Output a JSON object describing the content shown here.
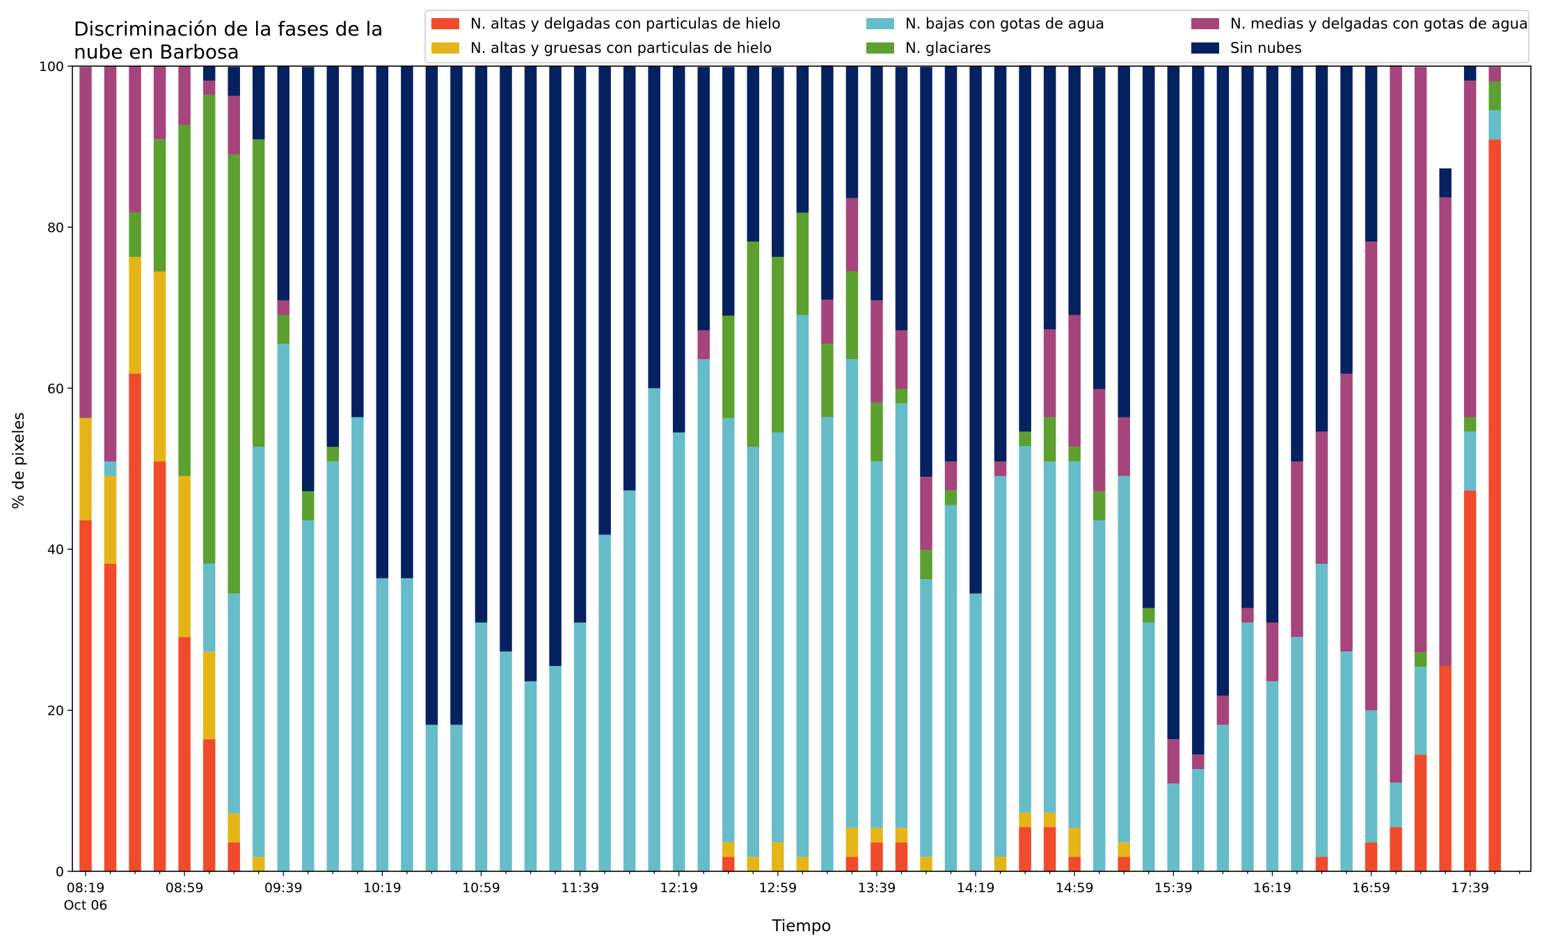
{
  "chart_data": {
    "type": "bar",
    "stacked": true,
    "title_lines": [
      "Discriminación de la fases de la",
      "nube en Barbosa"
    ],
    "xlabel": "Tiempo",
    "ylabel": "% de pixeles",
    "ylim": [
      0,
      100
    ],
    "yticks": [
      0,
      20,
      40,
      60,
      80,
      100
    ],
    "grid": false,
    "legend_position": "top-right",
    "categories": [
      "08:19",
      "08:29",
      "08:39",
      "08:49",
      "08:59",
      "09:09",
      "09:19",
      "09:29",
      "09:39",
      "09:49",
      "09:59",
      "10:09",
      "10:19",
      "10:29",
      "10:39",
      "10:49",
      "10:59",
      "11:09",
      "11:19",
      "11:29",
      "11:39",
      "11:49",
      "11:59",
      "12:09",
      "12:19",
      "12:29",
      "12:39",
      "12:49",
      "12:59",
      "13:09",
      "13:19",
      "13:29",
      "13:39",
      "13:49",
      "13:59",
      "14:09",
      "14:19",
      "14:29",
      "14:39",
      "14:49",
      "14:59",
      "15:09",
      "15:19",
      "15:29",
      "15:39",
      "15:49",
      "15:59",
      "16:09",
      "16:19",
      "16:29",
      "16:39",
      "16:49",
      "16:59",
      "17:09",
      "17:19",
      "17:29",
      "17:39",
      "17:49"
    ],
    "xtick_labels": [
      {
        "index": 0,
        "label": "08:19",
        "sublabel": "Oct 06"
      },
      {
        "index": 4,
        "label": "08:59"
      },
      {
        "index": 8,
        "label": "09:39"
      },
      {
        "index": 12,
        "label": "10:19"
      },
      {
        "index": 16,
        "label": "10:59"
      },
      {
        "index": 20,
        "label": "11:39"
      },
      {
        "index": 24,
        "label": "12:19"
      },
      {
        "index": 28,
        "label": "12:59"
      },
      {
        "index": 32,
        "label": "13:39"
      },
      {
        "index": 36,
        "label": "14:19"
      },
      {
        "index": 40,
        "label": "14:59"
      },
      {
        "index": 44,
        "label": "15:39"
      },
      {
        "index": 48,
        "label": "16:19"
      },
      {
        "index": 52,
        "label": "16:59"
      },
      {
        "index": 56,
        "label": "17:39"
      }
    ],
    "series": [
      {
        "name": "N. altas y delgadas con particulas de hielo",
        "color": "#f04b2a",
        "values": [
          43.6,
          38.2,
          61.8,
          50.9,
          29.1,
          16.4,
          3.6,
          0,
          0,
          0,
          0,
          0,
          0,
          0,
          0,
          0,
          0,
          0,
          0,
          0,
          0,
          0,
          0,
          0,
          0,
          0,
          1.8,
          0,
          0,
          0,
          0,
          1.8,
          3.6,
          3.6,
          0,
          0,
          0,
          0,
          5.5,
          5.5,
          1.8,
          0,
          1.8,
          0,
          0,
          0,
          0,
          0,
          0,
          0,
          1.8,
          0,
          3.6,
          5.5,
          14.5,
          25.5,
          47.3,
          90.9
        ]
      },
      {
        "name": "N. altas y gruesas con particulas de hielo",
        "color": "#e5b518",
        "values": [
          12.7,
          10.9,
          14.5,
          23.6,
          20,
          10.9,
          3.6,
          1.8,
          0,
          0,
          0,
          0,
          0,
          0,
          0,
          0,
          0,
          0,
          0,
          0,
          0,
          0,
          0,
          0,
          0,
          0,
          1.8,
          1.8,
          3.6,
          1.8,
          0,
          3.6,
          1.8,
          1.8,
          1.8,
          0,
          0,
          1.8,
          1.8,
          1.8,
          3.6,
          0,
          1.8,
          0,
          0,
          0,
          0,
          0,
          0,
          0,
          0,
          0,
          0,
          0,
          0,
          0,
          0,
          0
        ]
      },
      {
        "name": "N. bajas con gotas de agua",
        "color": "#66bdc9",
        "values": [
          0,
          1.8,
          0,
          0,
          0,
          10.9,
          27.3,
          50.9,
          65.5,
          43.6,
          50.9,
          56.4,
          36.4,
          36.4,
          18.2,
          18.2,
          30.9,
          27.3,
          23.6,
          25.5,
          30.9,
          41.8,
          47.3,
          60,
          54.5,
          63.6,
          52.7,
          50.9,
          50.9,
          67.3,
          56.4,
          58.2,
          45.5,
          52.7,
          34.5,
          45.5,
          34.5,
          47.3,
          45.5,
          43.6,
          45.5,
          43.6,
          45.5,
          30.9,
          10.9,
          12.7,
          18.2,
          30.9,
          23.6,
          29.1,
          36.4,
          27.3,
          16.4,
          5.5,
          10.9,
          0,
          7.3,
          3.6
        ]
      },
      {
        "name": "N. glaciares",
        "color": "#5ca12f",
        "values": [
          0,
          0,
          5.5,
          16.4,
          43.6,
          58.2,
          54.5,
          38.2,
          3.6,
          3.6,
          1.8,
          0,
          0,
          0,
          0,
          0,
          0,
          0,
          0,
          0,
          0,
          0,
          0,
          0,
          0,
          0,
          12.7,
          25.5,
          21.8,
          12.7,
          9.1,
          10.9,
          7.3,
          1.8,
          3.6,
          1.8,
          0,
          0,
          1.8,
          5.5,
          1.8,
          3.6,
          0,
          1.8,
          0,
          0,
          0,
          0,
          0,
          0,
          0,
          0,
          0,
          0,
          1.8,
          0,
          1.8,
          3.6
        ]
      },
      {
        "name": "N. medias y delgadas con gotas de agua",
        "color": "#a5457b",
        "values": [
          43.6,
          49.1,
          18.2,
          9.1,
          7.3,
          1.8,
          7.3,
          0,
          1.8,
          0,
          0,
          0,
          0,
          0,
          0,
          0,
          0,
          0,
          0,
          0,
          0,
          0,
          0,
          0,
          0,
          3.6,
          0,
          0,
          0,
          0,
          5.5,
          9.1,
          12.7,
          7.3,
          9.1,
          3.6,
          0,
          1.8,
          0,
          10.9,
          16.4,
          12.7,
          7.3,
          0,
          5.5,
          1.8,
          3.6,
          1.8,
          7.3,
          21.8,
          16.4,
          34.5,
          58.2,
          89.1,
          72.7,
          58.2,
          41.8,
          1.8
        ]
      },
      {
        "name": "Sin nubes",
        "color": "#06215f",
        "values": [
          0,
          0,
          0,
          0,
          0,
          1.8,
          3.6,
          9.1,
          29.1,
          52.7,
          47.3,
          43.6,
          63.6,
          63.6,
          81.8,
          81.8,
          69.1,
          72.7,
          76.4,
          74.5,
          69.1,
          58.2,
          52.7,
          40,
          45.5,
          32.7,
          30.9,
          21.8,
          23.6,
          18.2,
          29.1,
          16.4,
          29.1,
          32.7,
          50.9,
          49.1,
          65.5,
          49.1,
          45.5,
          32.7,
          30.9,
          40,
          43.6,
          67.3,
          83.6,
          85.5,
          78.2,
          67.3,
          69.1,
          49.1,
          45.5,
          38.2,
          21.8,
          0,
          0,
          3.6,
          1.8,
          0
        ]
      }
    ]
  }
}
